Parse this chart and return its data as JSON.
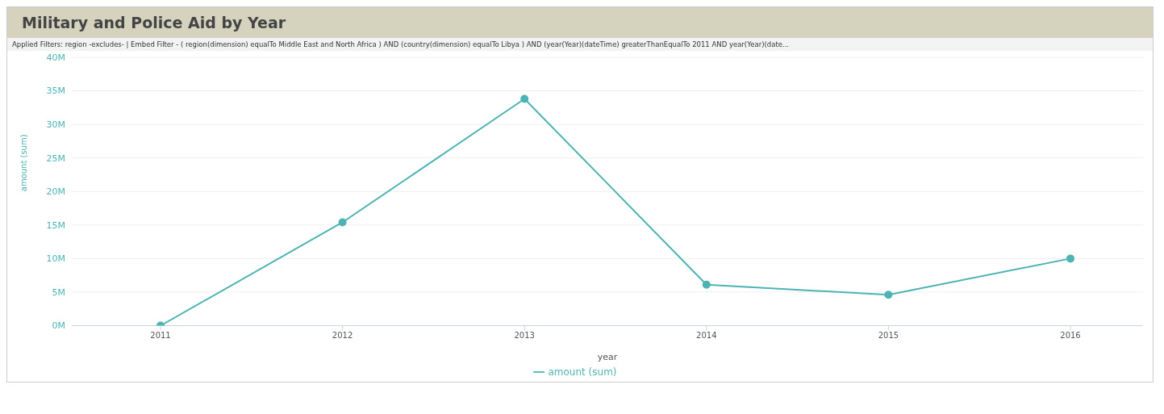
{
  "chart_data": {
    "type": "line",
    "title": "Military and Police Aid by Year",
    "subtitle": "Applied Filters:   region -excludes-   | Embed Filter - ( region(dimension) equalTo Middle East and North Africa ) AND (country(dimension) equalTo Libya ) AND (year(Year)(dateTime) greaterThanEqualTo 2011 AND year(Year)(date...",
    "xlabel": "year",
    "ylabel": "amount (sum)",
    "categories": [
      "2011",
      "2012",
      "2013",
      "2014",
      "2015",
      "2016"
    ],
    "series": [
      {
        "name": "amount (sum)",
        "color": "#4db3b3",
        "values": [
          0,
          15.4,
          33.8,
          6.1,
          4.6,
          10.0
        ]
      }
    ],
    "ylim": [
      0,
      40
    ],
    "yticks": [
      {
        "value": 0,
        "label": "0M"
      },
      {
        "value": 5,
        "label": "5M"
      },
      {
        "value": 10,
        "label": "10M"
      },
      {
        "value": 15,
        "label": "15M"
      },
      {
        "value": 20,
        "label": "20M"
      },
      {
        "value": 25,
        "label": "25M"
      },
      {
        "value": 30,
        "label": "30M"
      },
      {
        "value": 35,
        "label": "35M"
      },
      {
        "value": 40,
        "label": "40M"
      }
    ],
    "grid": "y",
    "legend": "bottom",
    "marker": "circle",
    "line_style": "solid"
  }
}
